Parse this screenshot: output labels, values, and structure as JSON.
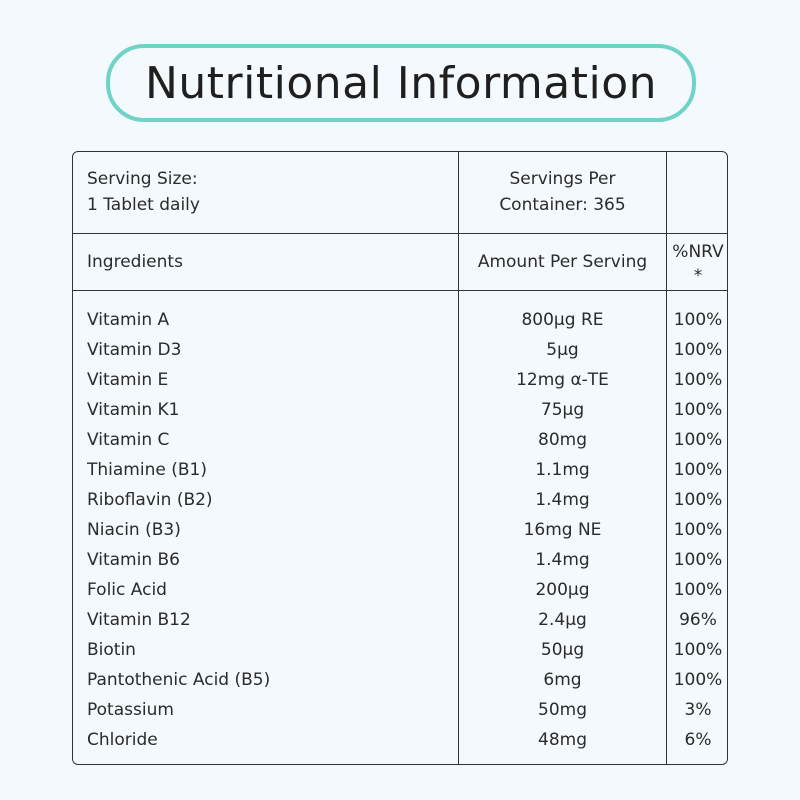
{
  "title": "Nutritional Information",
  "header": {
    "serving_size_line1": "Serving Size:",
    "serving_size_line2": "1 Tablet daily",
    "servings_per_line1": "Servings Per",
    "servings_per_line2": "Container: 365"
  },
  "columns": {
    "ingredients": "Ingredients",
    "amount": "Amount Per Serving",
    "nrv_line1": "%NRV",
    "nrv_line2": "*"
  },
  "rows": [
    {
      "name": "Vitamin A",
      "amount": "800µg RE",
      "nrv": "100%"
    },
    {
      "name": "Vitamin D3",
      "amount": "5µg",
      "nrv": "100%"
    },
    {
      "name": "Vitamin E",
      "amount": "12mg α-TE",
      "nrv": "100%"
    },
    {
      "name": "Vitamin K1",
      "amount": "75µg",
      "nrv": "100%"
    },
    {
      "name": "Vitamin C",
      "amount": "80mg",
      "nrv": "100%"
    },
    {
      "name": "Thiamine (B1)",
      "amount": "1.1mg",
      "nrv": "100%"
    },
    {
      "name": "Riboflavin (B2)",
      "amount": "1.4mg",
      "nrv": "100%"
    },
    {
      "name": "Niacin (B3)",
      "amount": "16mg NE",
      "nrv": "100%"
    },
    {
      "name": "Vitamin B6",
      "amount": "1.4mg",
      "nrv": "100%"
    },
    {
      "name": "Folic Acid",
      "amount": "200µg",
      "nrv": "100%"
    },
    {
      "name": "Vitamin B12",
      "amount": "2.4µg",
      "nrv": "96%"
    },
    {
      "name": "Biotin",
      "amount": "50µg",
      "nrv": "100%"
    },
    {
      "name": "Pantothenic Acid (B5)",
      "amount": "6mg",
      "nrv": "100%"
    },
    {
      "name": "Potassium",
      "amount": "50mg",
      "nrv": "3%"
    },
    {
      "name": "Chloride",
      "amount": "48mg",
      "nrv": "6%"
    }
  ],
  "colors": {
    "accent": "#6fd3c7",
    "background": "#f3f9fc",
    "border": "#333333"
  }
}
